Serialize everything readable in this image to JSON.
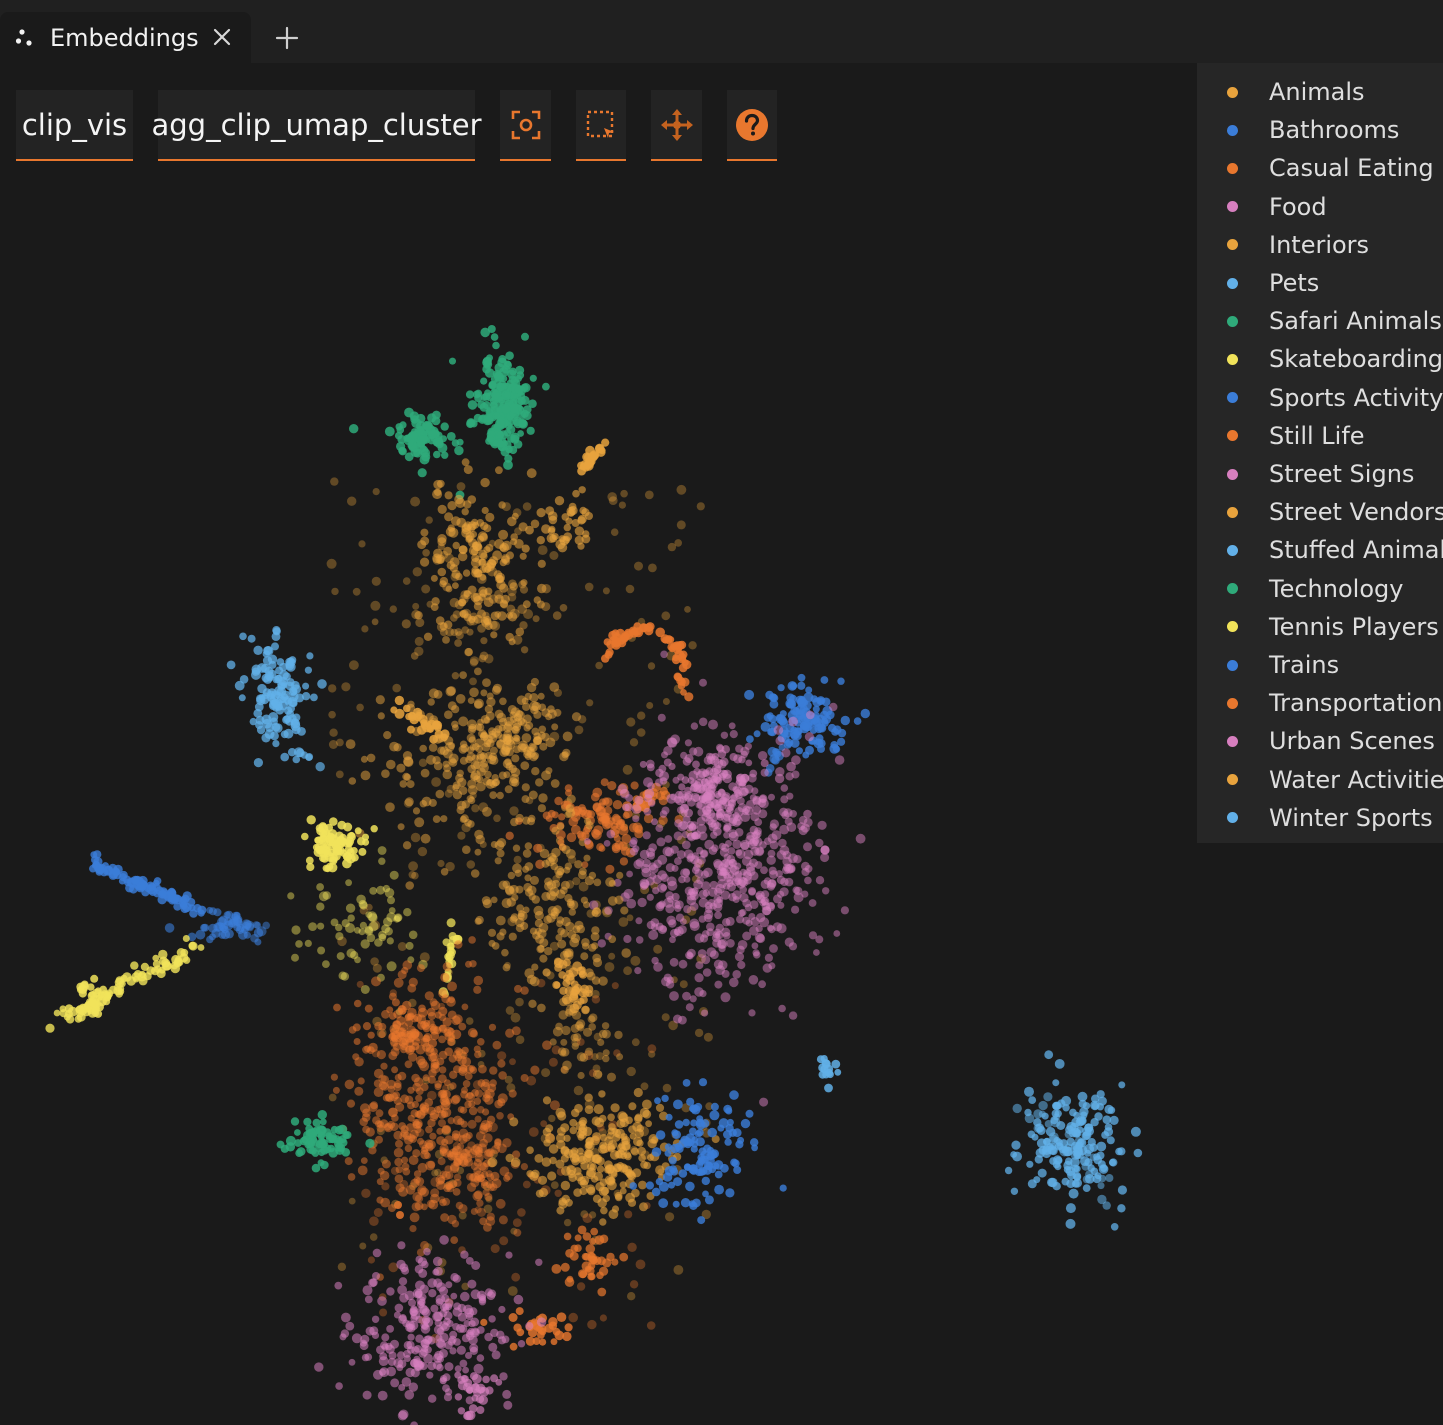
{
  "tab": {
    "title": "Embeddings",
    "icon": "embeddings-icon"
  },
  "toolbar": {
    "brain_key": "clip_vis",
    "color_by": "agg_clip_umap_cluster",
    "buttons": [
      {
        "name": "reset-zoom-button",
        "icon": "focus-icon"
      },
      {
        "name": "lasso-select-button",
        "icon": "selection-icon"
      },
      {
        "name": "pan-button",
        "icon": "move-icon"
      },
      {
        "name": "help-button",
        "icon": "help-icon"
      }
    ],
    "accent": "#e8772e"
  },
  "legend": [
    {
      "label": "Animals",
      "color": "#e8a33d"
    },
    {
      "label": "Bathrooms",
      "color": "#3b7dd8"
    },
    {
      "label": "Casual Eating",
      "color": "#e8772e"
    },
    {
      "label": "Food",
      "color": "#d77fbf"
    },
    {
      "label": "Interiors",
      "color": "#e8a33d"
    },
    {
      "label": "Pets",
      "color": "#62b0e8"
    },
    {
      "label": "Safari Animals",
      "color": "#2faa7a"
    },
    {
      "label": "Skateboarding",
      "color": "#f1e35a"
    },
    {
      "label": "Sports Activity",
      "color": "#3b7dd8"
    },
    {
      "label": "Still Life",
      "color": "#e8772e"
    },
    {
      "label": "Street Signs",
      "color": "#d77fbf"
    },
    {
      "label": "Street Vendors",
      "color": "#e8a33d"
    },
    {
      "label": "Stuffed Animals",
      "color": "#62b0e8"
    },
    {
      "label": "Technology",
      "color": "#2faa7a"
    },
    {
      "label": "Tennis Players",
      "color": "#f1e35a"
    },
    {
      "label": "Trains",
      "color": "#3b7dd8"
    },
    {
      "label": "Transportation",
      "color": "#e8772e"
    },
    {
      "label": "Urban Scenes",
      "color": "#d77fbf"
    },
    {
      "label": "Water Activities",
      "color": "#e8a33d"
    },
    {
      "label": "Winter Sports",
      "color": "#62b0e8"
    }
  ]
}
